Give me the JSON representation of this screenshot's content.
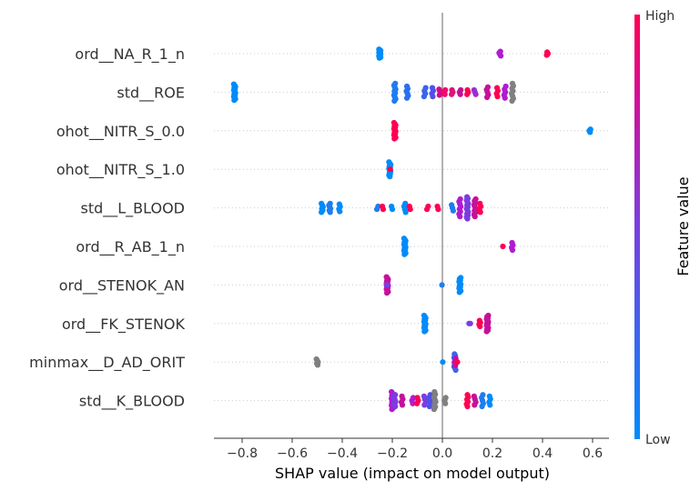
{
  "chart_data": {
    "type": "scatter",
    "subtype": "shap-beeswarm-summary",
    "xlabel": "SHAP value (impact on model output)",
    "xlim": [
      -0.92,
      0.68
    ],
    "xticks": [
      "−0.8",
      "−0.6",
      "−0.4",
      "−0.2",
      "0.0",
      "0.2",
      "0.4",
      "0.6"
    ],
    "xtick_values": [
      -0.8,
      -0.6,
      -0.4,
      -0.2,
      0.0,
      0.2,
      0.4,
      0.6
    ],
    "grid": false,
    "zero_line": true,
    "colorbar": {
      "label": "Feature value",
      "high_label": "High",
      "low_label": "Low",
      "high_color": "#ff0052",
      "low_color": "#008bfb"
    },
    "colors": {
      "low": "#008bfb",
      "high": "#ff0052",
      "missing": "#808080",
      "zero_line": "#999999"
    },
    "features": [
      {
        "name": "ord__NA_R_1_n",
        "clusters": [
          {
            "x": -0.25,
            "color": "#008bfb",
            "count": 14,
            "spread": 0.3
          },
          {
            "x": 0.23,
            "color": "#b01bd0",
            "count": 4,
            "spread": 0.15
          },
          {
            "x": 0.42,
            "color": "#ff0052",
            "count": 3,
            "spread": 0.1
          }
        ]
      },
      {
        "name": "std__ROE",
        "clusters": [
          {
            "x": -0.83,
            "color": "#008bfb",
            "count": 14,
            "spread": 0.55
          },
          {
            "x": -0.19,
            "color": "#1f7df0",
            "count": 10,
            "spread": 0.6
          },
          {
            "x": -0.14,
            "color": "#2a6ff0",
            "count": 6,
            "spread": 0.4
          },
          {
            "x": -0.07,
            "color": "#3b64ec",
            "count": 4,
            "spread": 0.3
          },
          {
            "x": -0.04,
            "color": "#5050e8",
            "count": 4,
            "spread": 0.3
          },
          {
            "x": -0.01,
            "color": "#d4088c",
            "count": 4,
            "spread": 0.2
          },
          {
            "x": 0.01,
            "color": "#f20a6a",
            "count": 3,
            "spread": 0.15
          },
          {
            "x": 0.04,
            "color": "#e0107a",
            "count": 3,
            "spread": 0.15
          },
          {
            "x": 0.07,
            "color": "#c21090",
            "count": 3,
            "spread": 0.15
          },
          {
            "x": 0.1,
            "color": "#ff0052",
            "count": 3,
            "spread": 0.15
          },
          {
            "x": 0.13,
            "color": "#9b2ed0",
            "count": 3,
            "spread": 0.15
          },
          {
            "x": 0.18,
            "color": "#c6109b",
            "count": 5,
            "spread": 0.35
          },
          {
            "x": 0.22,
            "color": "#ff0052",
            "count": 4,
            "spread": 0.3
          },
          {
            "x": 0.25,
            "color": "#b01bd0",
            "count": 5,
            "spread": 0.4
          },
          {
            "x": 0.28,
            "color": "#808080",
            "count": 8,
            "spread": 0.6
          }
        ]
      },
      {
        "name": "ohot__NITR_S_0.0",
        "clusters": [
          {
            "x": -0.19,
            "color": "#ff0052",
            "count": 14,
            "spread": 0.55
          },
          {
            "x": 0.59,
            "color": "#008bfb",
            "count": 3,
            "spread": 0.1
          }
        ]
      },
      {
        "name": "ohot__NITR_S_1.0",
        "clusters": [
          {
            "x": -0.21,
            "color": "#008bfb",
            "count": 12,
            "spread": 0.5
          },
          {
            "x": -0.21,
            "color": "#ff0052",
            "count": 1,
            "spread": 0.0
          }
        ]
      },
      {
        "name": "std__L_BLOOD",
        "clusters": [
          {
            "x": -0.48,
            "color": "#008bfb",
            "count": 6,
            "spread": 0.3
          },
          {
            "x": -0.45,
            "color": "#1f7df0",
            "count": 6,
            "spread": 0.3
          },
          {
            "x": -0.41,
            "color": "#008bfb",
            "count": 4,
            "spread": 0.25
          },
          {
            "x": -0.26,
            "color": "#1f7df0",
            "count": 2,
            "spread": 0.1
          },
          {
            "x": -0.24,
            "color": "#ff0052",
            "count": 2,
            "spread": 0.1
          },
          {
            "x": -0.2,
            "color": "#008bfb",
            "count": 2,
            "spread": 0.1
          },
          {
            "x": -0.15,
            "color": "#008bfb",
            "count": 4,
            "spread": 0.3
          },
          {
            "x": -0.13,
            "color": "#ff0052",
            "count": 2,
            "spread": 0.1
          },
          {
            "x": -0.06,
            "color": "#ff0052",
            "count": 2,
            "spread": 0.1
          },
          {
            "x": -0.02,
            "color": "#ff0052",
            "count": 2,
            "spread": 0.1
          },
          {
            "x": 0.04,
            "color": "#1f7df0",
            "count": 3,
            "spread": 0.2
          },
          {
            "x": 0.07,
            "color": "#b01bd0",
            "count": 8,
            "spread": 0.6
          },
          {
            "x": 0.1,
            "color": "#7a3ee0",
            "count": 14,
            "spread": 0.75
          },
          {
            "x": 0.13,
            "color": "#c6109b",
            "count": 10,
            "spread": 0.6
          },
          {
            "x": 0.15,
            "color": "#ff0052",
            "count": 4,
            "spread": 0.3
          }
        ]
      },
      {
        "name": "ord__R_AB_1_n",
        "clusters": [
          {
            "x": -0.15,
            "color": "#008bfb",
            "count": 14,
            "spread": 0.55
          },
          {
            "x": 0.24,
            "color": "#ff0052",
            "count": 1,
            "spread": 0.0
          },
          {
            "x": 0.28,
            "color": "#b01bd0",
            "count": 4,
            "spread": 0.25
          }
        ]
      },
      {
        "name": "ord__STENOK_AN",
        "clusters": [
          {
            "x": -0.22,
            "color": "#c6109b",
            "count": 14,
            "spread": 0.55
          },
          {
            "x": -0.22,
            "color": "#7a3ee0",
            "count": 2,
            "spread": 0.0
          },
          {
            "x": 0.0,
            "color": "#1f7df0",
            "count": 1,
            "spread": 0.0
          },
          {
            "x": 0.07,
            "color": "#008bfb",
            "count": 12,
            "spread": 0.5
          }
        ]
      },
      {
        "name": "ord__FK_STENOK",
        "clusters": [
          {
            "x": -0.07,
            "color": "#008bfb",
            "count": 14,
            "spread": 0.55
          },
          {
            "x": 0.11,
            "color": "#7a3ee0",
            "count": 2,
            "spread": 0.0
          },
          {
            "x": 0.15,
            "color": "#ff0052",
            "count": 4,
            "spread": 0.2
          },
          {
            "x": 0.18,
            "color": "#c6109b",
            "count": 14,
            "spread": 0.55
          }
        ]
      },
      {
        "name": "minmax__D_AD_ORIT",
        "clusters": [
          {
            "x": -0.5,
            "color": "#808080",
            "count": 5,
            "spread": 0.2
          },
          {
            "x": 0.0,
            "color": "#008bfb",
            "count": 1,
            "spread": 0.0
          },
          {
            "x": 0.05,
            "color": "#3b64ec",
            "count": 10,
            "spread": 0.55
          },
          {
            "x": 0.05,
            "color": "#c6109b",
            "count": 3,
            "spread": 0.25
          },
          {
            "x": 0.06,
            "color": "#ff0052",
            "count": 1,
            "spread": 0.0
          }
        ]
      },
      {
        "name": "std__K_BLOOD",
        "clusters": [
          {
            "x": -0.2,
            "color": "#b01bd0",
            "count": 14,
            "spread": 0.6
          },
          {
            "x": -0.19,
            "color": "#7a3ee0",
            "count": 6,
            "spread": 0.4
          },
          {
            "x": -0.16,
            "color": "#c6109b",
            "count": 4,
            "spread": 0.3
          },
          {
            "x": -0.12,
            "color": "#b01bd0",
            "count": 3,
            "spread": 0.2
          },
          {
            "x": -0.1,
            "color": "#ff0052",
            "count": 3,
            "spread": 0.2
          },
          {
            "x": -0.07,
            "color": "#7a3ee0",
            "count": 4,
            "spread": 0.3
          },
          {
            "x": -0.05,
            "color": "#5050e8",
            "count": 5,
            "spread": 0.4
          },
          {
            "x": -0.03,
            "color": "#808080",
            "count": 8,
            "spread": 0.6
          },
          {
            "x": 0.01,
            "color": "#808080",
            "count": 3,
            "spread": 0.2
          },
          {
            "x": 0.1,
            "color": "#ff0052",
            "count": 6,
            "spread": 0.4
          },
          {
            "x": 0.13,
            "color": "#c6109b",
            "count": 4,
            "spread": 0.3
          },
          {
            "x": 0.16,
            "color": "#1f7df0",
            "count": 5,
            "spread": 0.4
          },
          {
            "x": 0.19,
            "color": "#008bfb",
            "count": 4,
            "spread": 0.3
          }
        ]
      }
    ]
  }
}
